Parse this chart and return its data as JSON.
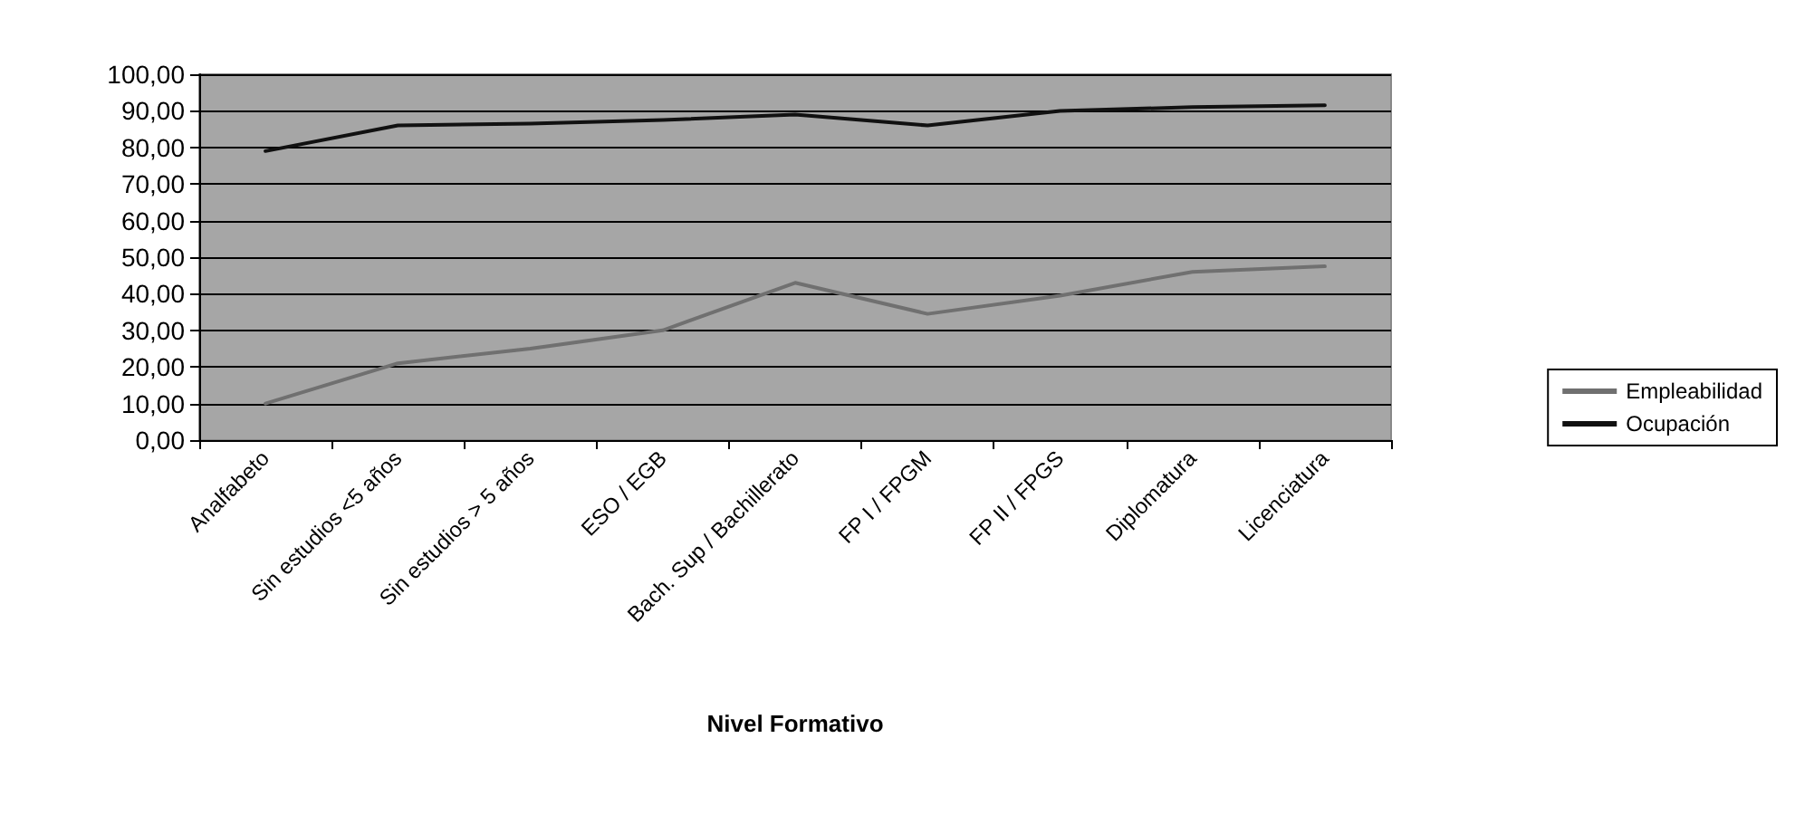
{
  "chart_data": {
    "type": "line",
    "xlabel": "Nivel Formativo",
    "categories": [
      "Analfabeto",
      "Sin estudios <5 años",
      "Sin estudios > 5 años",
      "ESO / EGB",
      "Bach. Sup / Bachillerato",
      "FP I / FPGM",
      "FP II / FPGS",
      "Diplomatura",
      "Licenciatura"
    ],
    "series": [
      {
        "name": "Empleabilidad",
        "color": "#707070",
        "values": [
          10,
          21,
          25,
          30,
          43,
          34.5,
          39.5,
          46,
          47.5
        ]
      },
      {
        "name": "Ocupación",
        "color": "#111111",
        "values": [
          79,
          86,
          86.5,
          87.5,
          89,
          86,
          90,
          91,
          91.5
        ]
      }
    ],
    "ylim": [
      0,
      100
    ],
    "yticks": [
      {
        "value": 0,
        "label": "0,00"
      },
      {
        "value": 10,
        "label": "10,00"
      },
      {
        "value": 20,
        "label": "20,00"
      },
      {
        "value": 30,
        "label": "30,00"
      },
      {
        "value": 40,
        "label": "40,00"
      },
      {
        "value": 50,
        "label": "50,00"
      },
      {
        "value": 60,
        "label": "60,00"
      },
      {
        "value": 70,
        "label": "70,00"
      },
      {
        "value": 80,
        "label": "80,00"
      },
      {
        "value": 90,
        "label": "90,00"
      },
      {
        "value": 100,
        "label": "100,00"
      }
    ],
    "grid": "y",
    "legend": "right",
    "marker": "none",
    "line_style": "solid"
  }
}
